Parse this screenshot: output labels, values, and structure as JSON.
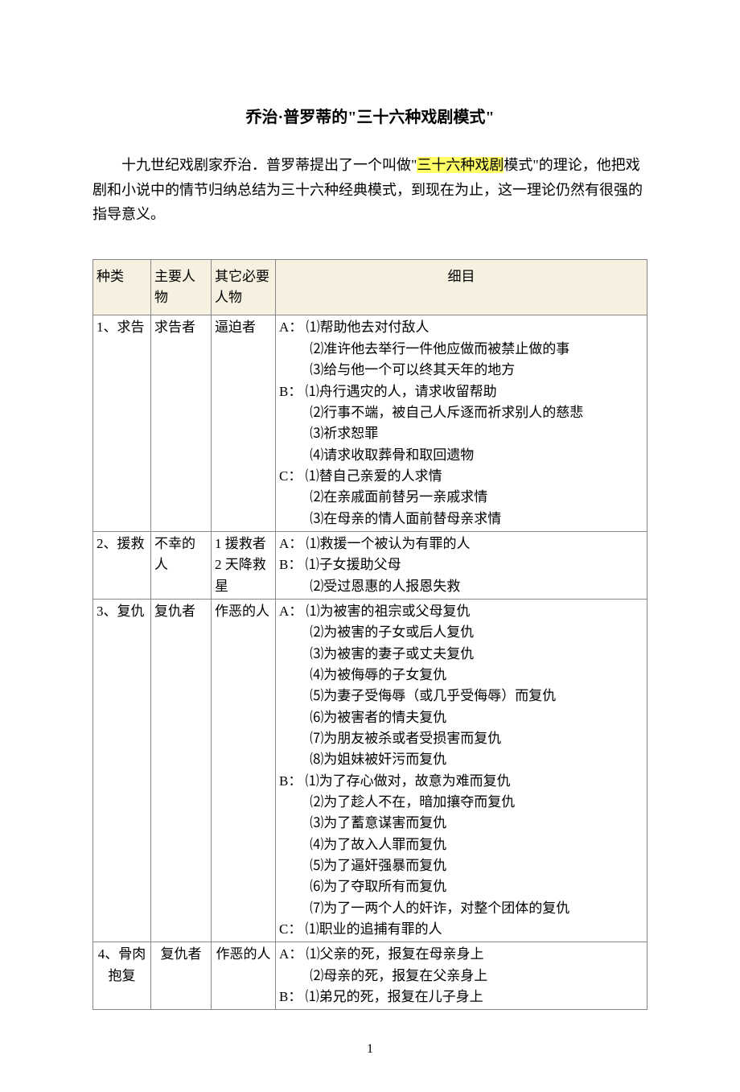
{
  "title": "乔治·普罗蒂的\"三十六种戏剧模式\"",
  "intro_before_hl": "十九世纪戏剧家乔治．普罗蒂提出了一个叫做\"",
  "intro_hl": "三十六种戏剧",
  "intro_after_hl": "模式\"的理论，他把戏剧和小说中的情节归纳总结为三十六种经典模式，到现在为止，这一理论仍然有很强的指导意义。",
  "headers": {
    "col1": "种类",
    "col2": "主要人物",
    "col3": "其它必要人物",
    "col4": "细目"
  },
  "rows": [
    {
      "c1": "1、求告",
      "c2": "求告者",
      "c3": "逼迫者",
      "details": "A： ⑴帮助他去对付敌人\n　　 ⑵准许他去举行一件他应做而被禁止做的事\n　　 ⑶给与他一个可以终其天年的地方\nB： ⑴舟行遇灾的人，请求收留帮助\n　　 ⑵行事不端，被自己人斥逐而祈求别人的慈悲\n　　 ⑶祈求恕罪\n　　 ⑷请求收取葬骨和取回遗物\nC： ⑴替自己亲爱的人求情\n　　 ⑵在亲戚面前替另一亲戚求情\n　　 ⑶在母亲的情人面前替母亲求情"
    },
    {
      "c1": "2、援救",
      "c2": "不幸的人",
      "c3": "1 援救者\n2 天降救星",
      "details": "A： ⑴救援一个被认为有罪的人\nB： ⑴子女援助父母\n　　 ⑵受过恩惠的人报恩失救"
    },
    {
      "c1": "3、复仇",
      "c2": "复仇者",
      "c3": "作恶的人",
      "details": "A： ⑴为被害的祖宗或父母复仇\n　　 ⑵为被害的子女或后人复仇\n　　 ⑶为被害的妻子或丈夫复仇\n　　 ⑷为被侮辱的子女复仇\n　　 ⑸为妻子受侮辱（或几乎受侮辱）而复仇\n　　 ⑹为被害者的情夫复仇\n　　 ⑺为朋友被杀或者受损害而复仇\n　　 ⑻为姐妹被奸污而复仇\nB： ⑴为了存心做对，故意为难而复仇\n　　 ⑵为了趁人不在，暗加攘夺而复仇\n　　 ⑶为了蓄意谋害而复仇\n　　 ⑷为了故入人罪而复仇\n　　 ⑸为了逼奸强暴而复仇\n　　 ⑹为了夺取所有而复仇\n　　 ⑺为了一两个人的奸诈，对整个团体的复仇\nC： ⑴职业的追捕有罪的人"
    },
    {
      "c1": "4、骨肉抱复",
      "c1_center": true,
      "c2": "复仇者",
      "c2_center": true,
      "c3": "作恶的人",
      "c3_center": true,
      "details": "A： ⑴父亲的死，报复在母亲身上\n　　 ⑵母亲的死，报复在父亲身上\nB： ⑴弟兄的死，报复在儿子身上"
    }
  ],
  "page_number": "1",
  "styles": {
    "page_bg": "#ffffff",
    "text_color": "#000000",
    "highlight_bg": "#ffff66",
    "header_bg": "#f5f0df",
    "border_color": "#888888",
    "body_fontsize": 18,
    "title_fontsize": 20,
    "table_fontsize": 17
  }
}
